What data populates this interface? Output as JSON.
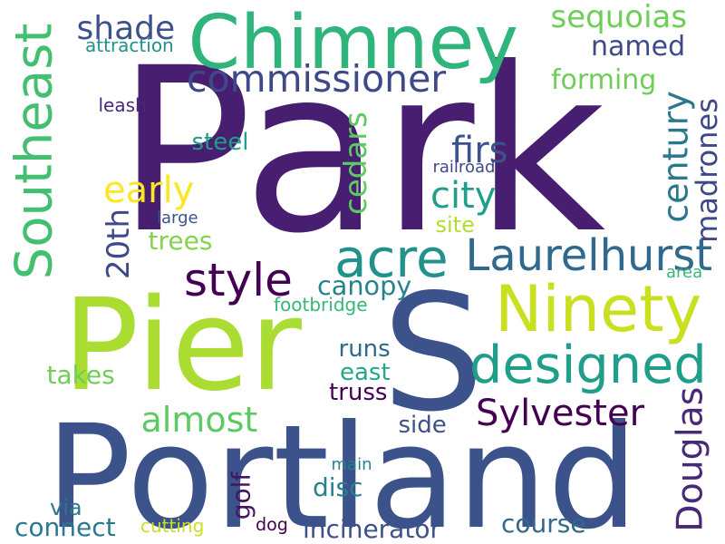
{
  "words": [
    {
      "text": "Park",
      "color": "#481f70"
    },
    {
      "text": "Pier",
      "color": "#aadc32"
    },
    {
      "text": "S",
      "color": "#3b528b"
    },
    {
      "text": "Portland",
      "color": "#3b528b"
    },
    {
      "text": "Chimney",
      "color": "#2fb47c"
    },
    {
      "text": "Southeast",
      "color": "#44bf70"
    },
    {
      "text": "Ninety",
      "color": "#c8e020"
    },
    {
      "text": "designed",
      "color": "#1f9e89"
    },
    {
      "text": "acre",
      "color": "#21918c"
    },
    {
      "text": "style",
      "color": "#440154"
    },
    {
      "text": "Laurelhurst",
      "color": "#31688e"
    },
    {
      "text": "commissioner",
      "color": "#3e4989"
    },
    {
      "text": "named",
      "color": "#3e4989"
    },
    {
      "text": "Sylvester",
      "color": "#440154"
    },
    {
      "text": "Douglas",
      "color": "#482878"
    },
    {
      "text": "century",
      "color": "#2a788e"
    },
    {
      "text": "madrones",
      "color": "#3e4989"
    },
    {
      "text": "almost",
      "color": "#5ec962"
    },
    {
      "text": "shade",
      "color": "#3b528b"
    },
    {
      "text": "sequoias",
      "color": "#6ece58"
    },
    {
      "text": "early",
      "color": "#fde725"
    },
    {
      "text": "city",
      "color": "#1f9e89"
    },
    {
      "text": "firs",
      "color": "#3b528b"
    },
    {
      "text": "cedars",
      "color": "#5ec962"
    },
    {
      "text": "20th",
      "color": "#3e4989"
    },
    {
      "text": "trees",
      "color": "#84d44b"
    },
    {
      "text": "canopy",
      "color": "#26828e"
    },
    {
      "text": "forming",
      "color": "#6ece58"
    },
    {
      "text": "steel",
      "color": "#1f9e89"
    },
    {
      "text": "leash",
      "color": "#482878"
    },
    {
      "text": "attraction",
      "color": "#21918c"
    },
    {
      "text": "railroad",
      "color": "#3e4989"
    },
    {
      "text": "large",
      "color": "#3b528b"
    },
    {
      "text": "site",
      "color": "#b5de2b"
    },
    {
      "text": "area",
      "color": "#35b779"
    },
    {
      "text": "footbridge",
      "color": "#35b779"
    },
    {
      "text": "runs",
      "color": "#31688e"
    },
    {
      "text": "east",
      "color": "#22a884"
    },
    {
      "text": "takes",
      "color": "#6ece58"
    },
    {
      "text": "truss",
      "color": "#440154"
    },
    {
      "text": "side",
      "color": "#3b528b"
    },
    {
      "text": "main",
      "color": "#26828e"
    },
    {
      "text": "golf",
      "color": "#471365"
    },
    {
      "text": "disc",
      "color": "#26828e"
    },
    {
      "text": "via",
      "color": "#2a788e"
    },
    {
      "text": "connect",
      "color": "#2a788e"
    },
    {
      "text": "cutting",
      "color": "#c8e020"
    },
    {
      "text": "dog",
      "color": "#440154"
    },
    {
      "text": "incinerator",
      "color": "#3b528b"
    },
    {
      "text": "course",
      "color": "#31688e"
    }
  ]
}
